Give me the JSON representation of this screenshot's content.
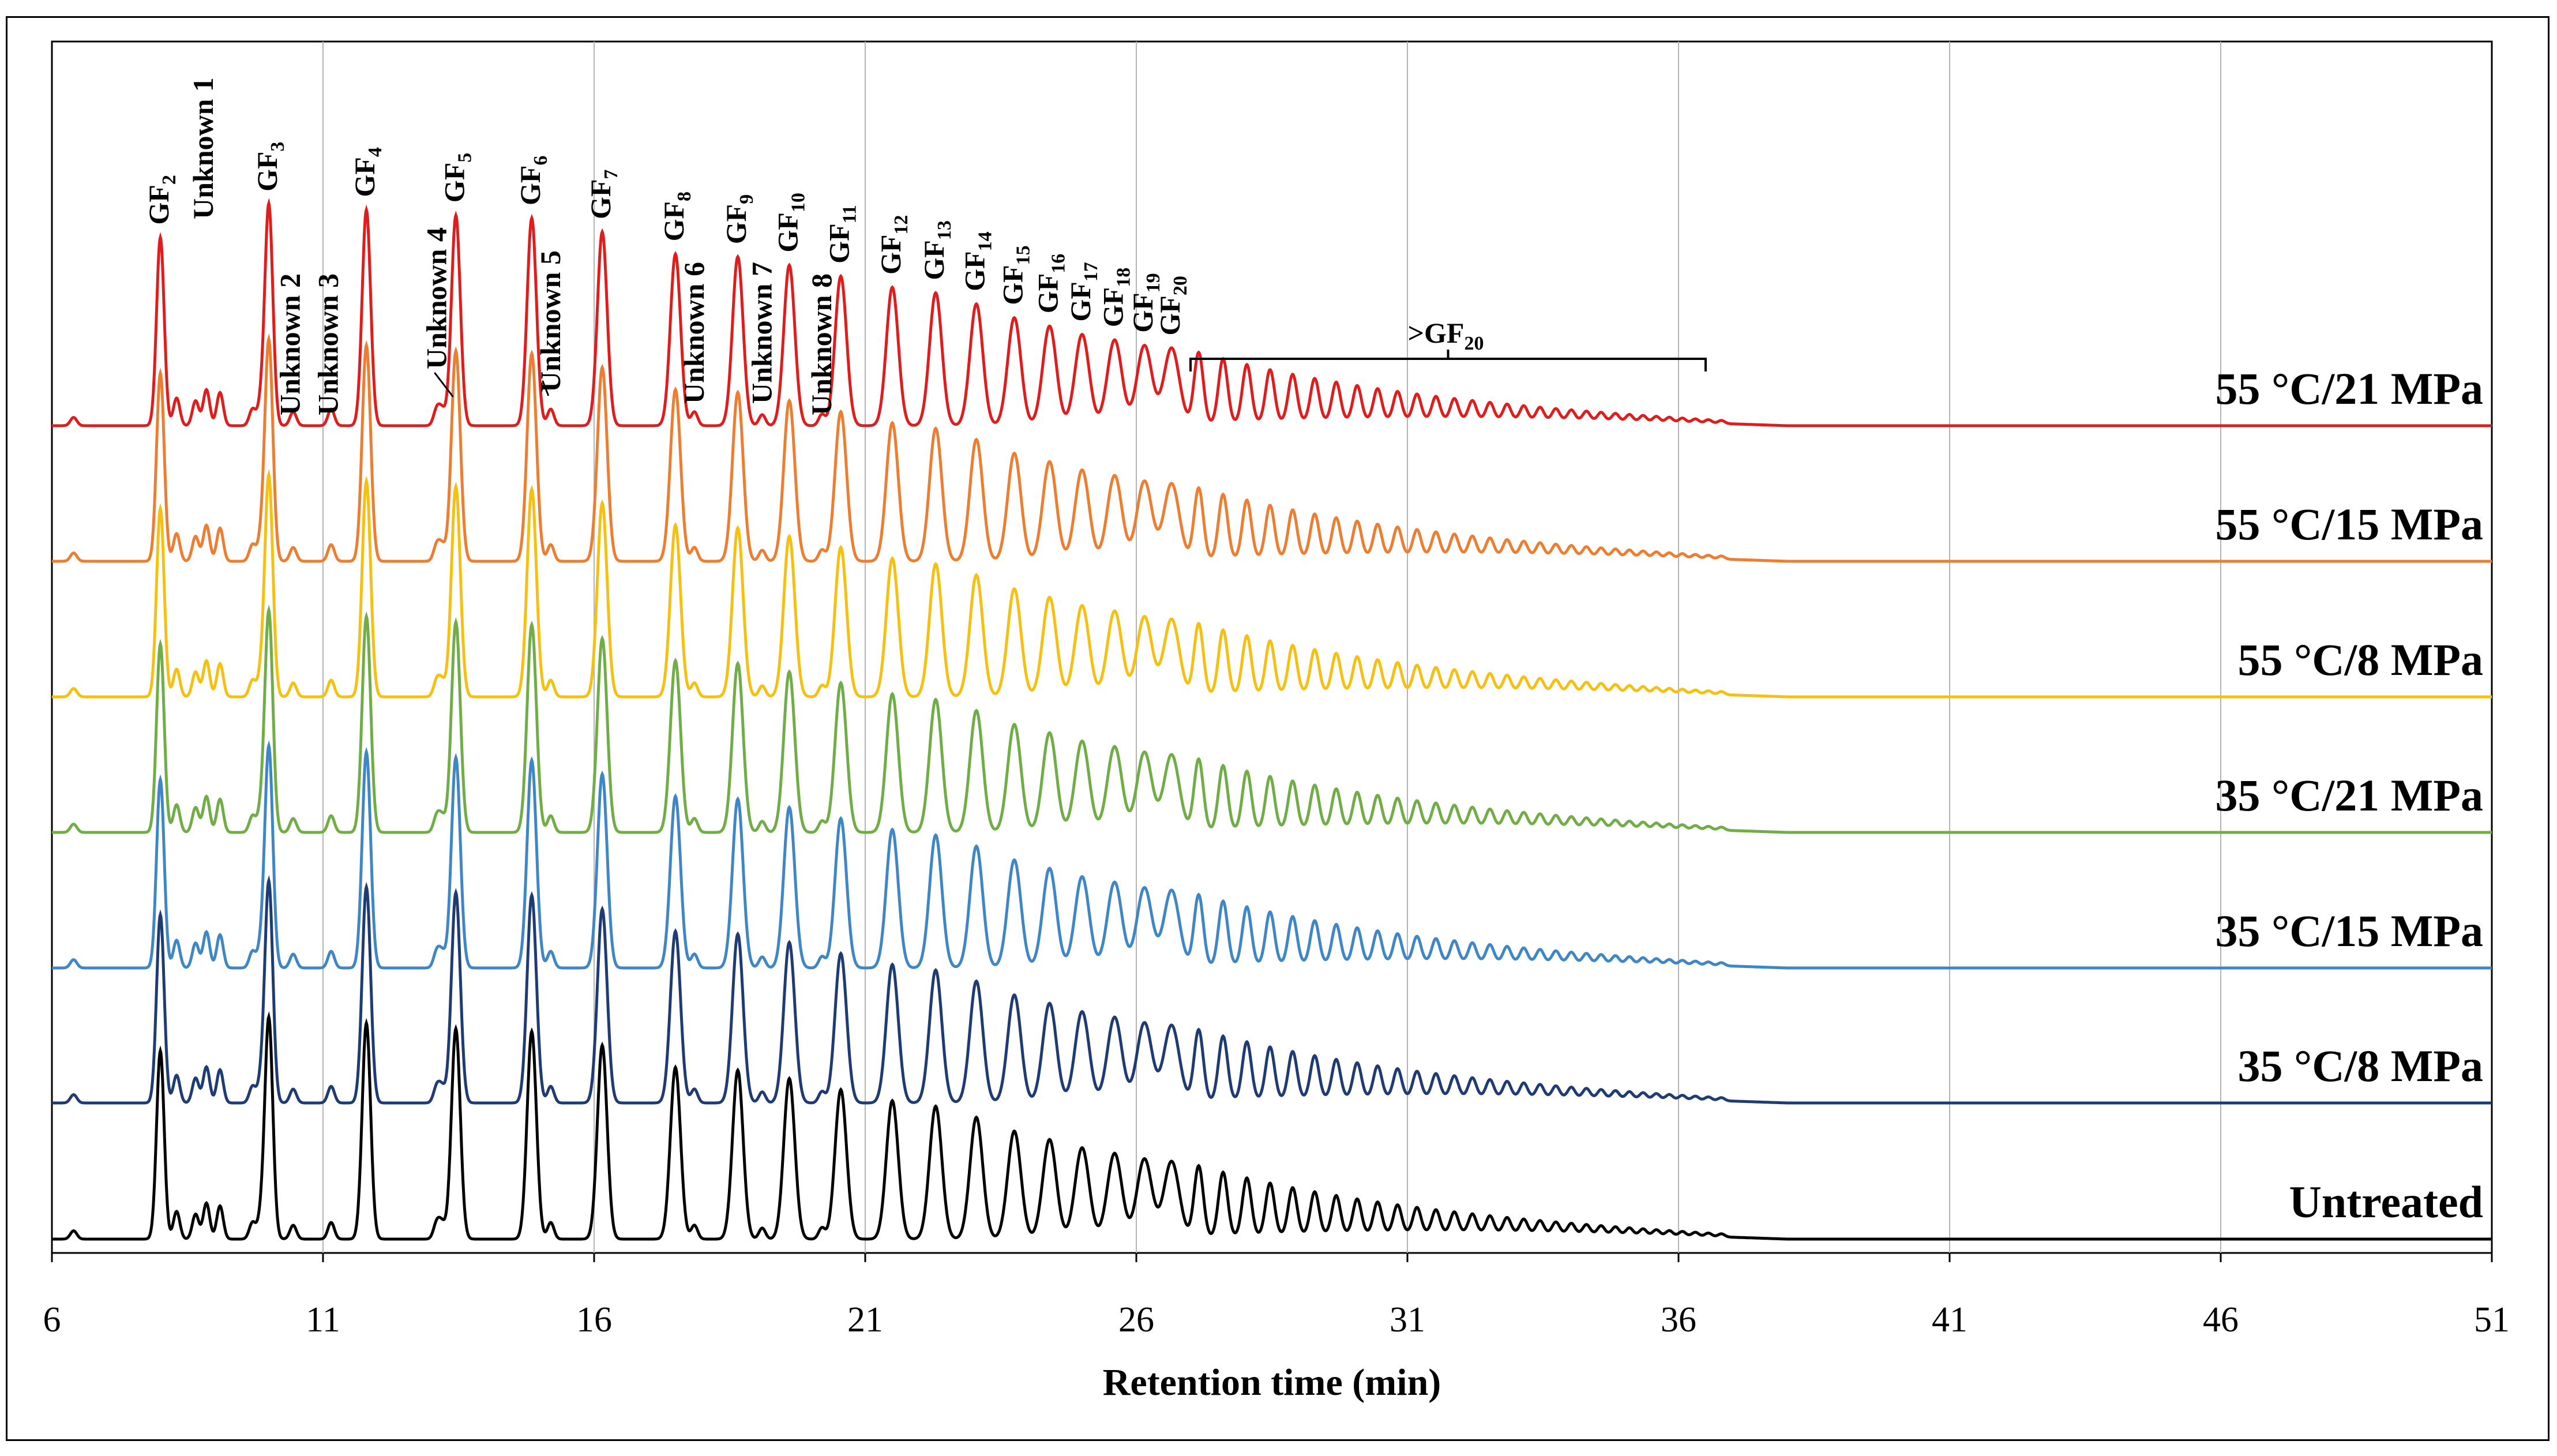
{
  "chart_data": {
    "type": "line",
    "title": "",
    "xlabel": "Retention time (min)",
    "ylabel": "",
    "xlim": [
      6,
      51
    ],
    "x_ticks": [
      6,
      11,
      16,
      21,
      26,
      31,
      36,
      41,
      46,
      51
    ],
    "grid": "vertical",
    "series": [
      {
        "name": "Untreated",
        "color": "#000000"
      },
      {
        "name": "35 °C/8 MPa",
        "color": "#1f3b73"
      },
      {
        "name": "35 °C/15 MPa",
        "color": "#3f86c6"
      },
      {
        "name": "35 °C/21 MPa",
        "color": "#70ad47"
      },
      {
        "name": "55 °C/8 MPa",
        "color": "#f5c012"
      },
      {
        "name": "55 °C/15 MPa",
        "color": "#ed7d31"
      },
      {
        "name": "55 °C/21 MPa",
        "color": "#e01c1c"
      }
    ],
    "gf_peaks": [
      {
        "base": "GF",
        "sub": "2",
        "rt": 8.0
      },
      {
        "base": "GF",
        "sub": "3",
        "rt": 10.0
      },
      {
        "base": "GF",
        "sub": "4",
        "rt": 11.8
      },
      {
        "base": "GF",
        "sub": "5",
        "rt": 13.45
      },
      {
        "base": "GF",
        "sub": "6",
        "rt": 14.85
      },
      {
        "base": "GF",
        "sub": "7",
        "rt": 16.15
      },
      {
        "base": "GF",
        "sub": "8",
        "rt": 17.5
      },
      {
        "base": "GF",
        "sub": "9",
        "rt": 18.65
      },
      {
        "base": "GF",
        "sub": "10",
        "rt": 19.6
      },
      {
        "base": "GF",
        "sub": "11",
        "rt": 20.55
      },
      {
        "base": "GF",
        "sub": "12",
        "rt": 21.5
      },
      {
        "base": "GF",
        "sub": "13",
        "rt": 22.3
      },
      {
        "base": "GF",
        "sub": "14",
        "rt": 23.05
      },
      {
        "base": "GF",
        "sub": "15",
        "rt": 23.75
      },
      {
        "base": "GF",
        "sub": "16",
        "rt": 24.4
      },
      {
        "base": "GF",
        "sub": "17",
        "rt": 25.0
      },
      {
        "base": "GF",
        "sub": "18",
        "rt": 25.6
      },
      {
        "base": "GF",
        "sub": "19",
        "rt": 26.15
      },
      {
        "base": "GF",
        "sub": "20",
        "rt": 26.65
      }
    ],
    "unknown_peaks": [
      {
        "label": "Unknown 1",
        "rt": 8.8
      },
      {
        "label": "Unknown 2",
        "rt": 10.4
      },
      {
        "label": "Unknown 3",
        "rt": 11.1
      },
      {
        "label": "Unknown 4",
        "rt": 13.1
      },
      {
        "label": "Unknown 5",
        "rt": 15.2
      },
      {
        "label": "Unknown 6",
        "rt": 17.85
      },
      {
        "label": "Unknown 7",
        "rt": 19.1
      },
      {
        "label": "Unknown 8",
        "rt": 20.2
      }
    ],
    "bracket": {
      "base": ">GF",
      "sub": "20",
      "from": 27.0,
      "to": 36.5
    }
  }
}
